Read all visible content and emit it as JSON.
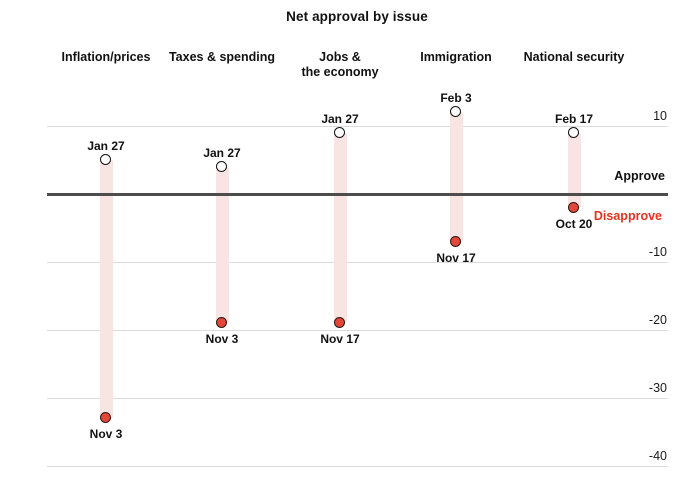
{
  "title": "Net approval by issue",
  "labels": {
    "approve": "Approve",
    "disapprove": "Disapprove"
  },
  "colors": {
    "start_dot_fill": "#ffffff",
    "start_dot_stroke": "#111111",
    "end_dot_fill": "#e2473a",
    "end_dot_stroke": "#2a1713",
    "band": "#f8e4e2",
    "gridline": "#dcdcdc",
    "zero_line": "#4d4d4d",
    "disapprove_text": "#e8321e",
    "text": "#111111"
  },
  "chart_data": {
    "type": "dumbbell",
    "title": "Net approval by issue",
    "categories": [
      "Inflation/prices",
      "Taxes & spending",
      "Jobs & the economy",
      "Immigration",
      "National security"
    ],
    "category_display_lines": [
      [
        "Inflation/prices"
      ],
      [
        "Taxes & spending"
      ],
      [
        "Jobs &",
        "the economy"
      ],
      [
        "Immigration"
      ],
      [
        "National security"
      ]
    ],
    "points": [
      {
        "issue": "Inflation/prices",
        "start": {
          "date": "Jan 27",
          "value": 5
        },
        "end": {
          "date": "Nov 3",
          "value": -33
        }
      },
      {
        "issue": "Taxes & spending",
        "start": {
          "date": "Jan 27",
          "value": 4
        },
        "end": {
          "date": "Nov 3",
          "value": -19
        }
      },
      {
        "issue": "Jobs & the economy",
        "start": {
          "date": "Jan 27",
          "value": 9
        },
        "end": {
          "date": "Nov 17",
          "value": -19
        }
      },
      {
        "issue": "Immigration",
        "start": {
          "date": "Feb 3",
          "value": 12
        },
        "end": {
          "date": "Nov 17",
          "value": -7
        }
      },
      {
        "issue": "National security",
        "start": {
          "date": "Feb 17",
          "value": 9
        },
        "end": {
          "date": "Oct 20",
          "value": -2
        }
      }
    ],
    "series": [
      {
        "name": "start (open circle, approve side)",
        "values": [
          5,
          4,
          9,
          12,
          9
        ]
      },
      {
        "name": "end (red circle, disapprove side)",
        "values": [
          -33,
          -19,
          -19,
          -7,
          -2
        ]
      }
    ],
    "yticks": [
      10,
      -10,
      -20,
      -30,
      -40
    ],
    "ytick_labels": [
      "10",
      "-10",
      "-20",
      "-30",
      "-40"
    ],
    "ylim": [
      -42,
      14
    ],
    "zero_line_value": 0,
    "annotations": {
      "above_zero": "Approve",
      "below_zero": "Disapprove"
    },
    "grid": true,
    "tick_label_position": "right",
    "legend_position": "right of zero line"
  }
}
